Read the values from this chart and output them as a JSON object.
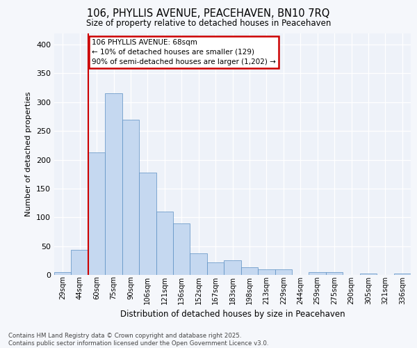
{
  "title_line1": "106, PHYLLIS AVENUE, PEACEHAVEN, BN10 7RQ",
  "title_line2": "Size of property relative to detached houses in Peacehaven",
  "xlabel": "Distribution of detached houses by size in Peacehaven",
  "ylabel": "Number of detached properties",
  "categories": [
    "29sqm",
    "44sqm",
    "60sqm",
    "75sqm",
    "90sqm",
    "106sqm",
    "121sqm",
    "136sqm",
    "152sqm",
    "167sqm",
    "183sqm",
    "198sqm",
    "213sqm",
    "229sqm",
    "244sqm",
    "259sqm",
    "275sqm",
    "290sqm",
    "305sqm",
    "321sqm",
    "336sqm"
  ],
  "values": [
    5,
    43,
    213,
    315,
    270,
    178,
    110,
    90,
    38,
    22,
    25,
    13,
    10,
    10,
    0,
    5,
    5,
    0,
    3,
    0,
    3
  ],
  "bar_color": "#c5d8f0",
  "bar_edge_color": "#5a8fc2",
  "red_line_x": 1.5,
  "annotation_text": "106 PHYLLIS AVENUE: 68sqm\n← 10% of detached houses are smaller (129)\n90% of semi-detached houses are larger (1,202) →",
  "annotation_box_color": "#ffffff",
  "annotation_border_color": "#cc0000",
  "footer_line1": "Contains HM Land Registry data © Crown copyright and database right 2025.",
  "footer_line2": "Contains public sector information licensed under the Open Government Licence v3.0.",
  "bg_color": "#eef2f9",
  "grid_color": "#ffffff",
  "fig_bg_color": "#f5f7fb",
  "ylim": [
    0,
    420
  ],
  "yticks": [
    0,
    50,
    100,
    150,
    200,
    250,
    300,
    350,
    400
  ],
  "red_line_color": "#cc0000",
  "figsize": [
    6.0,
    5.0
  ],
  "dpi": 100
}
